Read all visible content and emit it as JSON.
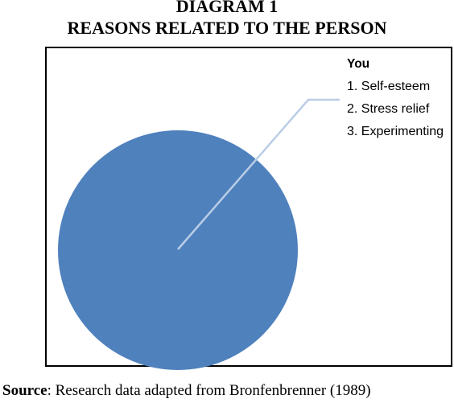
{
  "title": {
    "line1": "DIAGRAM 1",
    "line2": "REASONS RELATED TO THE PERSON"
  },
  "callout": {
    "heading": "You",
    "items": [
      "1. Self-esteem",
      "2. Stress relief",
      "3. Experimenting"
    ]
  },
  "source": {
    "label": "Source",
    "text": ": Research data adapted from Bronfenbrenner (1989)"
  },
  "colors": {
    "circle_fill": "#4f81bd",
    "leader_line": "#b9cde5",
    "frame_border": "#000000"
  }
}
